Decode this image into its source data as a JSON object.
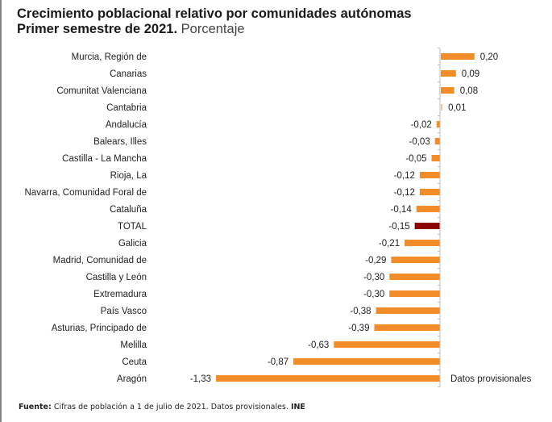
{
  "title": {
    "line1": "Crecimiento poblacional relativo por comunidades autónomas",
    "line2_bold": "Primer semestre de 2021.",
    "line2_light": "Porcentaje"
  },
  "footer": {
    "label": "Fuente:",
    "text": "Cifras de población a 1 de julio de 2021. Datos provisionales.",
    "org": "INE"
  },
  "colors": {
    "bar": "#f28c28",
    "highlight": "#8b0000",
    "axis": "#bfbfbf"
  },
  "chart_data": {
    "type": "bar",
    "orientation": "horizontal",
    "title": "Crecimiento poblacional relativo por comunidades autónomas. Primer semestre de 2021. Porcentaje",
    "xlabel": "",
    "ylabel": "",
    "grid": false,
    "xlim": [
      -1.4,
      0.3
    ],
    "annotation": "Datos provisionales",
    "highlight_category": "TOTAL",
    "categories": [
      "Murcia, Región de",
      "Canarias",
      "Comunitat Valenciana",
      "Cantabria",
      "Andalucía",
      "Balears, Illes",
      "Castilla - La Mancha",
      "Rioja, La",
      "Navarra, Comunidad Foral de",
      "Cataluña",
      "TOTAL",
      "Galicia",
      "Madrid, Comunidad de",
      "Castilla y León",
      "Extremadura",
      "País Vasco",
      "Asturias, Principado de",
      "Melilla",
      "Ceuta",
      "Aragón"
    ],
    "values": [
      0.2,
      0.09,
      0.08,
      0.01,
      -0.02,
      -0.03,
      -0.05,
      -0.12,
      -0.12,
      -0.14,
      -0.15,
      -0.21,
      -0.29,
      -0.3,
      -0.3,
      -0.38,
      -0.39,
      -0.63,
      -0.87,
      -1.33
    ],
    "value_labels": [
      "0,20",
      "0,09",
      "0,08",
      "0,01",
      "-0,02",
      "-0,03",
      "-0,05",
      "-0,12",
      "-0,12",
      "-0,14",
      "-0,15",
      "-0,21",
      "-0,29",
      "-0,30",
      "-0,30",
      "-0,38",
      "-0,39",
      "-0,63",
      "-0,87",
      "-1,33"
    ]
  }
}
